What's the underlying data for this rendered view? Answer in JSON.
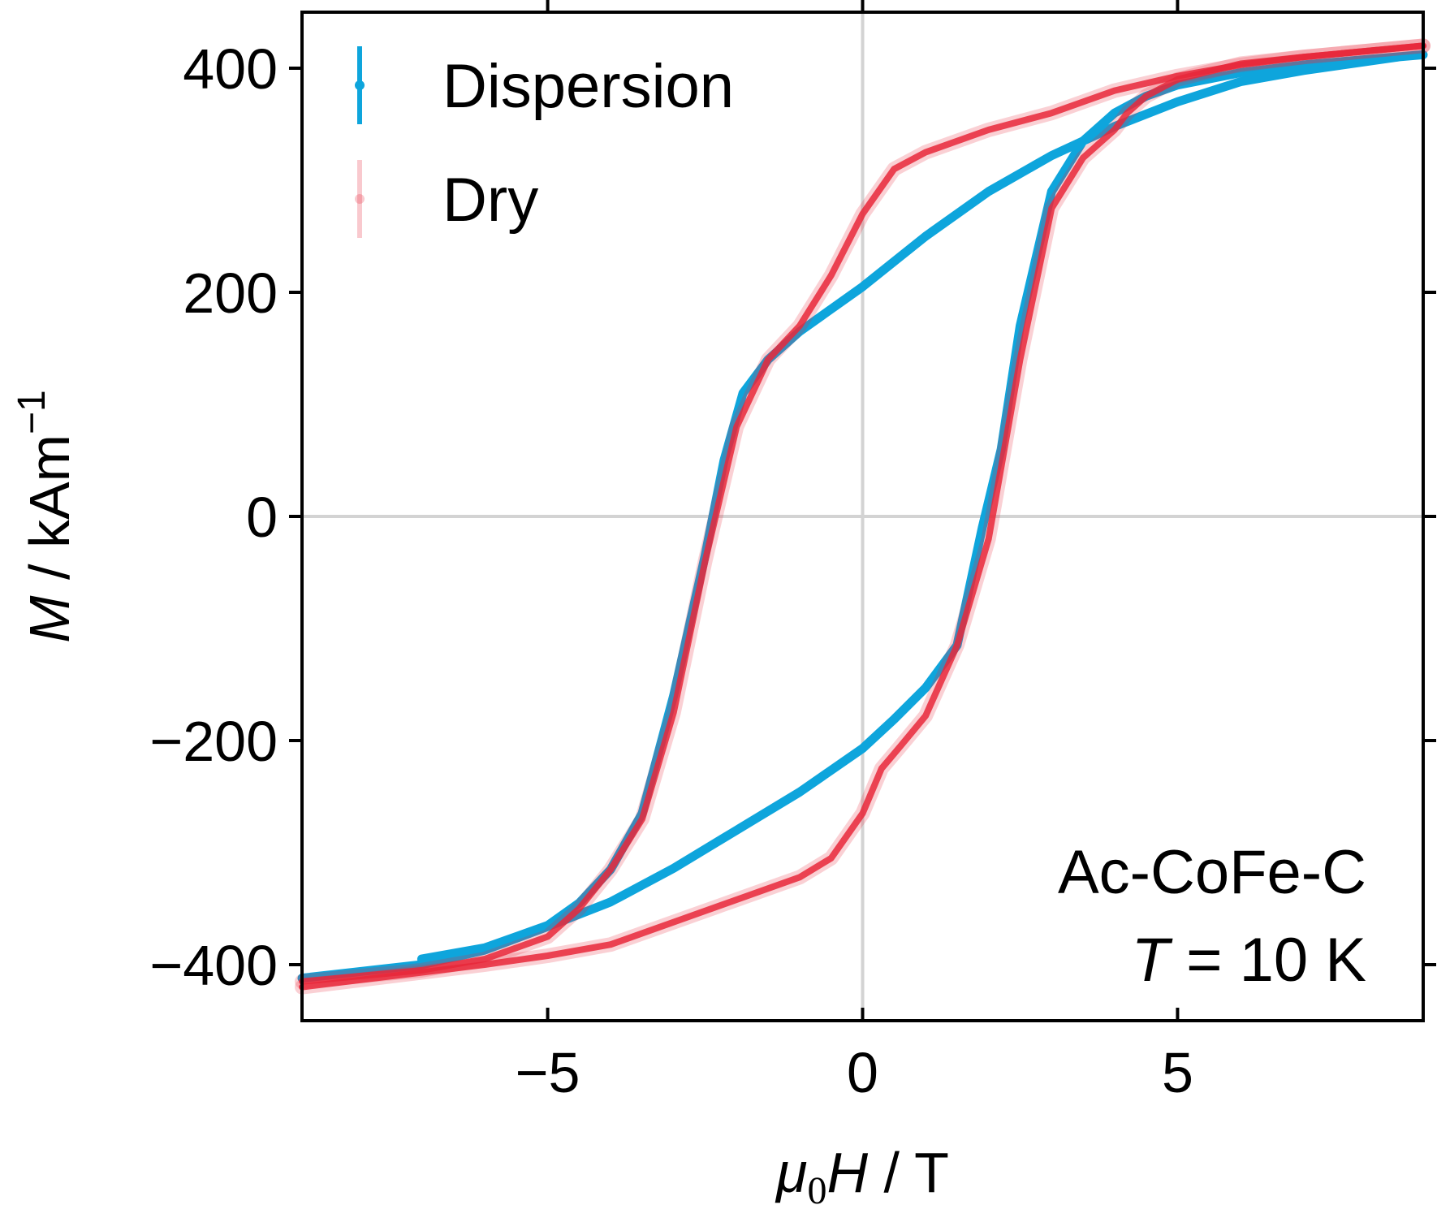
{
  "chart_data": {
    "type": "line",
    "xlabel": {
      "mu": "μ",
      "sub": "0",
      "rest": "H",
      "sep": " / ",
      "unit": "T"
    },
    "ylabel": {
      "var": "M",
      "sep": " / ",
      "unit": "kAm",
      "sup": "−1"
    },
    "xlim": [
      -8.9,
      8.9
    ],
    "ylim": [
      -450,
      450
    ],
    "xticks": [
      -5,
      0,
      5
    ],
    "xtick_labels": [
      "−5",
      "0",
      "5"
    ],
    "yticks": [
      -400,
      -200,
      0,
      200,
      400
    ],
    "ytick_labels": [
      "−400",
      "−200",
      "0",
      "200",
      "400"
    ],
    "grid": "zero-lines",
    "legend_position": "top-left",
    "annotation": {
      "line1": "Ac-CoFe-C",
      "line2_var": "T",
      "line2_rest": " = 10 K"
    },
    "series": [
      {
        "name": "Dispersion",
        "color": "#0ea5dc",
        "upper_branch": {
          "x": [
            -7,
            -6,
            -5,
            -4.5,
            -4,
            -3.5,
            -3,
            -2.5,
            -2.2,
            -1.9,
            -1.5,
            -1,
            -0.5,
            0,
            1,
            2,
            3,
            4,
            5,
            6,
            7,
            8.5
          ],
          "y": [
            -395,
            -385,
            -365,
            -345,
            -315,
            -265,
            -160,
            -35,
            50,
            110,
            140,
            165,
            185,
            205,
            250,
            290,
            322,
            348,
            370,
            388,
            398,
            410
          ]
        },
        "lower_branch": {
          "x": [
            -8.9,
            -7,
            -6,
            -5,
            -4,
            -3,
            -2,
            -1,
            0,
            0.5,
            1,
            1.5,
            1.9,
            2.2,
            2.5,
            3,
            3.5,
            4,
            4.5,
            5,
            6,
            7,
            8.9
          ],
          "y": [
            -412,
            -400,
            -387,
            -366,
            -344,
            -314,
            -280,
            -246,
            -207,
            -181,
            -153,
            -115,
            -10,
            60,
            170,
            290,
            335,
            360,
            375,
            385,
            396,
            403,
            412
          ]
        }
      },
      {
        "name": "Dry",
        "color": "#e8283a",
        "upper_branch": {
          "x": [
            -8.9,
            -7,
            -6,
            -5,
            -4.5,
            -4,
            -3.5,
            -3,
            -2.5,
            -2,
            -1.5,
            -1,
            -0.5,
            0,
            0.5,
            1,
            2,
            3,
            4,
            5,
            6,
            7,
            8.9
          ],
          "y": [
            -415,
            -405,
            -395,
            -375,
            -350,
            -315,
            -270,
            -175,
            -40,
            80,
            140,
            170,
            215,
            270,
            310,
            325,
            345,
            360,
            380,
            393,
            403,
            410,
            420
          ]
        },
        "lower_branch": {
          "x": [
            -8.9,
            -6,
            -5,
            -4,
            -3,
            -2,
            -1,
            -0.5,
            0,
            0.3,
            0.6,
            1,
            1.5,
            2,
            2.5,
            3,
            3.5,
            4,
            4.2,
            4.5,
            5,
            6,
            7,
            8.9
          ],
          "y": [
            -420,
            -400,
            -392,
            -382,
            -362,
            -342,
            -322,
            -305,
            -265,
            -225,
            -205,
            -178,
            -115,
            -20,
            140,
            275,
            320,
            345,
            360,
            375,
            390,
            404,
            410,
            420
          ]
        }
      }
    ]
  }
}
